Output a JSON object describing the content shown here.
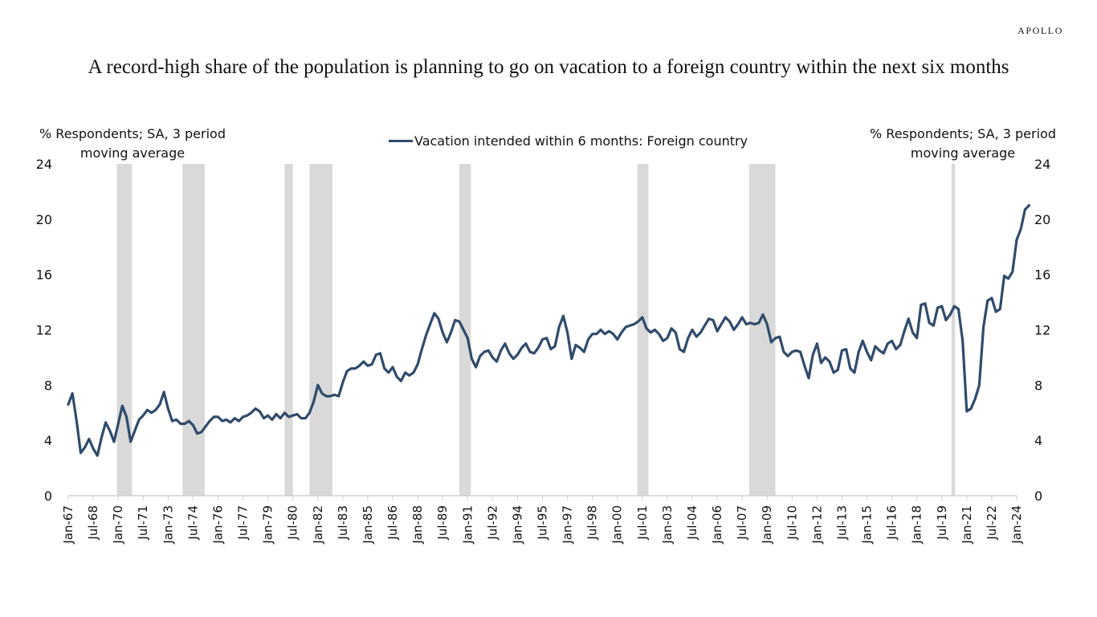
{
  "brand": "APOLLO",
  "title": "A record-high share of the population is planning to go on vacation to a foreign country within the next six months",
  "colors": {
    "line": "#2f4b6c",
    "recession": "#d9d9d9",
    "axis": "#d0d0d0"
  },
  "chart_data": {
    "type": "line",
    "title": "A record-high share of the population is planning to go on vacation to a foreign country within the next six months",
    "ylabel_left": "% Respondents; SA, 3 period moving average",
    "ylabel_right": "% Respondents; SA, 3 period moving average",
    "ylabel_left_lines": [
      "% Respondents; SA, 3 period",
      "moving average"
    ],
    "ylabel_right_lines": [
      "% Respondents; SA, 3 period",
      "moving average"
    ],
    "xlabel": "",
    "ylim": [
      0,
      24
    ],
    "yticks": [
      0,
      4,
      8,
      12,
      16,
      20,
      24
    ],
    "xlim": [
      1967.0,
      2024.0
    ],
    "xtick_labels": [
      "Jan-67",
      "Jul-68",
      "Jan-70",
      "Jul-71",
      "Jan-73",
      "Jul-74",
      "Jan-76",
      "Jul-77",
      "Jan-79",
      "Jul-80",
      "Jan-82",
      "Jul-83",
      "Jan-85",
      "Jul-86",
      "Jan-88",
      "Jul-89",
      "Jan-91",
      "Jul-92",
      "Jan-94",
      "Jul-95",
      "Jan-97",
      "Jul-98",
      "Jan-00",
      "Jul-01",
      "Jan-03",
      "Jul-04",
      "Jan-06",
      "Jul-07",
      "Jan-09",
      "Jul-10",
      "Jan-12",
      "Jul-13",
      "Jan-15",
      "Jul-16",
      "Jan-18",
      "Jul-19",
      "Jan-21",
      "Jul-22",
      "Jan-24"
    ],
    "legend": {
      "position": "top-center",
      "entries": [
        "Vacation intended within 6 months: Foreign country"
      ]
    },
    "grid": false,
    "recessions": [
      [
        1969.92,
        1970.83
      ],
      [
        1973.87,
        1975.2
      ],
      [
        1980.0,
        1980.5
      ],
      [
        1981.5,
        1982.87
      ],
      [
        1990.5,
        1991.2
      ],
      [
        2001.2,
        2001.87
      ],
      [
        2007.92,
        2009.5
      ],
      [
        2020.08,
        2020.3
      ]
    ],
    "series": [
      {
        "name": "Vacation intended within 6 months: Foreign country",
        "x_start": 1967.0,
        "x_step": 0.25,
        "values": [
          6.6,
          7.4,
          5.4,
          3.1,
          3.5,
          4.1,
          3.4,
          2.9,
          4.2,
          5.3,
          4.7,
          3.9,
          5.2,
          6.5,
          5.7,
          3.9,
          4.7,
          5.5,
          5.8,
          6.2,
          6.0,
          6.2,
          6.6,
          7.5,
          6.3,
          5.4,
          5.5,
          5.2,
          5.2,
          5.4,
          5.1,
          4.5,
          4.6,
          5.0,
          5.4,
          5.7,
          5.7,
          5.4,
          5.5,
          5.3,
          5.6,
          5.4,
          5.7,
          5.8,
          6.0,
          6.3,
          6.1,
          5.6,
          5.8,
          5.5,
          5.9,
          5.6,
          6.0,
          5.7,
          5.8,
          5.9,
          5.6,
          5.6,
          6.0,
          6.8,
          8.0,
          7.4,
          7.2,
          7.2,
          7.3,
          7.2,
          8.2,
          9.0,
          9.2,
          9.2,
          9.4,
          9.7,
          9.4,
          9.5,
          10.2,
          10.3,
          9.2,
          8.9,
          9.3,
          8.6,
          8.3,
          8.9,
          8.7,
          8.9,
          9.5,
          10.6,
          11.6,
          12.4,
          13.2,
          12.8,
          11.8,
          11.1,
          11.8,
          12.7,
          12.6,
          12.0,
          11.4,
          9.9,
          9.3,
          10.1,
          10.4,
          10.5,
          10.0,
          9.7,
          10.5,
          11.0,
          10.3,
          9.9,
          10.2,
          10.7,
          11.0,
          10.4,
          10.3,
          10.7,
          11.3,
          11.4,
          10.6,
          10.8,
          12.2,
          13.0,
          11.8,
          9.9,
          10.9,
          10.7,
          10.4,
          11.3,
          11.7,
          11.7,
          12.0,
          11.7,
          11.9,
          11.7,
          11.3,
          11.8,
          12.2,
          12.3,
          12.4,
          12.6,
          12.9,
          12.1,
          11.8,
          12.0,
          11.7,
          11.2,
          11.4,
          12.1,
          11.8,
          10.6,
          10.4,
          11.4,
          12.0,
          11.5,
          11.8,
          12.3,
          12.8,
          12.7,
          11.9,
          12.4,
          12.9,
          12.6,
          12.0,
          12.4,
          12.9,
          12.4,
          12.5,
          12.4,
          12.5,
          13.1,
          12.4,
          11.1,
          11.4,
          11.5,
          10.4,
          10.1,
          10.4,
          10.5,
          10.4,
          9.4,
          8.5,
          10.2,
          11.0,
          9.6,
          10.0,
          9.7,
          8.9,
          9.1,
          10.5,
          10.6,
          9.2,
          8.9,
          10.4,
          11.2,
          10.4,
          9.8,
          10.8,
          10.5,
          10.3,
          11.0,
          11.2,
          10.6,
          10.9,
          11.9,
          12.8,
          11.8,
          11.4,
          13.8,
          13.9,
          12.5,
          12.3,
          13.6,
          13.7,
          12.7,
          13.1,
          13.7,
          13.5,
          11.2,
          6.1,
          6.3,
          7.0,
          8.0,
          12.2,
          14.1,
          14.3,
          13.3,
          13.5,
          15.9,
          15.7,
          16.2,
          18.5,
          19.3,
          20.7,
          21.0
        ]
      }
    ]
  }
}
